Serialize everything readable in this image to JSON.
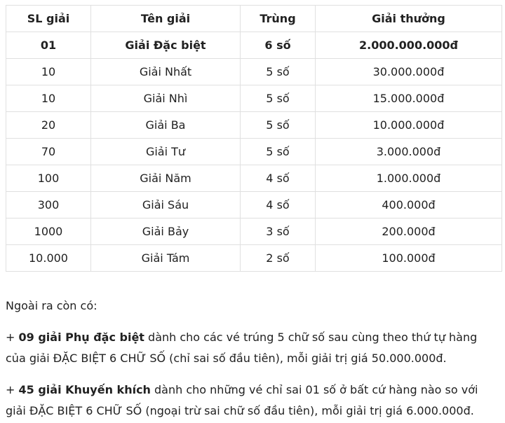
{
  "table": {
    "headers": [
      "SL giải",
      "Tên giải",
      "Trùng",
      "Giải thưởng"
    ],
    "rows": [
      {
        "qty": "01",
        "name": "Giải Đặc biệt",
        "match": "6 số",
        "prize": "2.000.000.000đ"
      },
      {
        "qty": "10",
        "name": "Giải Nhất",
        "match": "5 số",
        "prize": "30.000.000đ"
      },
      {
        "qty": "10",
        "name": "Giải Nhì",
        "match": "5 số",
        "prize": "15.000.000đ"
      },
      {
        "qty": "20",
        "name": "Giải Ba",
        "match": "5 số",
        "prize": "10.000.000đ"
      },
      {
        "qty": "70",
        "name": "Giải Tư",
        "match": "5 số",
        "prize": "3.000.000đ"
      },
      {
        "qty": "100",
        "name": "Giải Năm",
        "match": "4 số",
        "prize": "1.000.000đ"
      },
      {
        "qty": "300",
        "name": "Giải Sáu",
        "match": "4 số",
        "prize": "400.000đ"
      },
      {
        "qty": "1000",
        "name": "Giải Bảy",
        "match": "3 số",
        "prize": "200.000đ"
      },
      {
        "qty": "10.000",
        "name": "Giải Tám",
        "match": "2 số",
        "prize": "100.000đ"
      }
    ]
  },
  "notes": {
    "intro": "Ngoài ra còn có:",
    "p1_prefix": "+ ",
    "p1_bold": "09 giải Phụ đặc biệt",
    "p1_rest": " dành cho các vé trúng 5 chữ số sau cùng theo thứ tự hàng của giải ĐẶC BIỆT 6 CHỮ SỐ (chỉ sai số đầu tiên), mỗi giải trị giá 50.000.000đ.",
    "p2_prefix": "+ ",
    "p2_bold": "45 giải Khuyến khích",
    "p2_rest": " dành cho những vé chỉ sai 01 số ở bất cứ hàng nào so với giải ĐẶC BIỆT 6 CHỮ SỐ (ngoại trừ sai chữ số đầu tiên), mỗi giải trị giá 6.000.000đ."
  },
  "colors": {
    "border": "#e0e0e0",
    "text": "#212121",
    "background": "#ffffff"
  }
}
